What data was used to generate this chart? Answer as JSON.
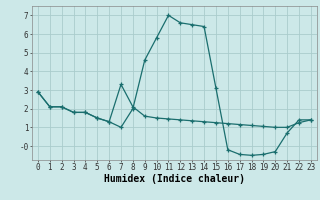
{
  "xlabel": "Humidex (Indice chaleur)",
  "background_color": "#cce8e8",
  "grid_color": "#aacccc",
  "line_color": "#1a6e6e",
  "xlim": [
    -0.5,
    23.5
  ],
  "ylim": [
    -0.75,
    7.5
  ],
  "xticks": [
    0,
    1,
    2,
    3,
    4,
    5,
    6,
    7,
    8,
    9,
    10,
    11,
    12,
    13,
    14,
    15,
    16,
    17,
    18,
    19,
    20,
    21,
    22,
    23
  ],
  "yticks": [
    0,
    1,
    2,
    3,
    4,
    5,
    6,
    7
  ],
  "ytick_labels": [
    "-0",
    "1",
    "2",
    "3",
    "4",
    "5",
    "6",
    "7"
  ],
  "series1_x": [
    0,
    1,
    2,
    3,
    4,
    5,
    6,
    7,
    8,
    9,
    10,
    11,
    12,
    13,
    14,
    15,
    16,
    17,
    18,
    19,
    20,
    21,
    22,
    23
  ],
  "series1_y": [
    2.9,
    2.1,
    2.1,
    1.8,
    1.8,
    1.5,
    1.3,
    1.0,
    2.0,
    4.6,
    5.8,
    7.0,
    6.6,
    6.5,
    6.4,
    3.1,
    -0.2,
    -0.45,
    -0.5,
    -0.45,
    -0.3,
    0.7,
    1.4,
    1.4
  ],
  "series2_x": [
    0,
    1,
    2,
    3,
    4,
    5,
    6,
    7,
    8,
    9,
    10,
    11,
    12,
    13,
    14,
    15,
    16,
    17,
    18,
    19,
    20,
    21,
    22,
    23
  ],
  "series2_y": [
    2.9,
    2.1,
    2.1,
    1.8,
    1.8,
    1.5,
    1.3,
    3.3,
    2.1,
    1.6,
    1.5,
    1.45,
    1.4,
    1.35,
    1.3,
    1.25,
    1.2,
    1.15,
    1.1,
    1.05,
    1.0,
    1.0,
    1.25,
    1.4
  ],
  "tick_fontsize": 5.5,
  "xlabel_fontsize": 7.0
}
